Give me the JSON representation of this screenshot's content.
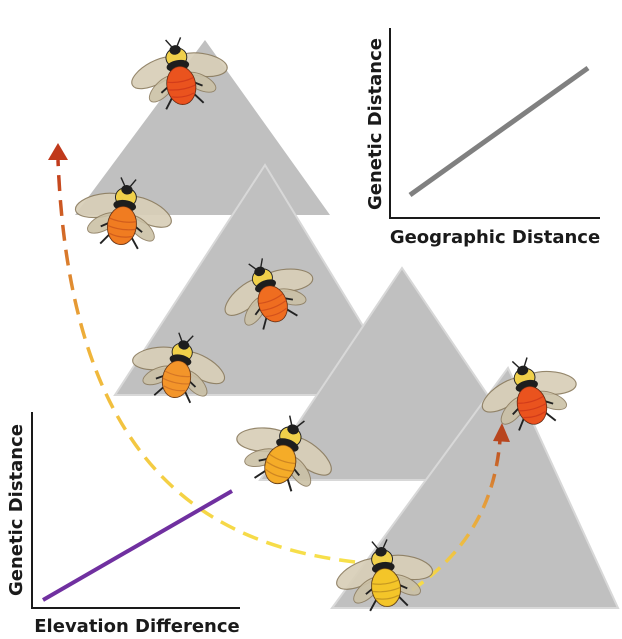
{
  "colors": {
    "mountain": "#c0c0c0",
    "mountain_edge": "#d6d6d6",
    "inset_geo_line": "#808080",
    "inset_elev_line": "#7030a0",
    "path_start": "#f7e04a",
    "path_end": "#c0391b",
    "axis": "#1a1a1a",
    "bee_low_elevation": "#f4c02a",
    "bee_mid_elevation": "#f28a2a",
    "bee_high_elevation": "#e8401c"
  },
  "insets": {
    "geographic": {
      "ylabel": "Genetic Distance",
      "xlabel": "Geographic Distance"
    },
    "elevation": {
      "ylabel": "Genetic Distance",
      "xlabel": "Elevation Difference"
    }
  },
  "mountains": [
    "mountain-top-left",
    "mountain-middle",
    "mountain-lower-right",
    "mountain-bottom-right"
  ],
  "bees": [
    {
      "name": "bee-peak-top",
      "band": "high",
      "icon": "bumblebee-icon"
    },
    {
      "name": "bee-top-left-slope",
      "band": "mid-high",
      "icon": "bumblebee-icon"
    },
    {
      "name": "bee-middle-peak",
      "band": "high-mid",
      "icon": "bumblebee-icon"
    },
    {
      "name": "bee-middle-left",
      "band": "mid",
      "icon": "bumblebee-icon"
    },
    {
      "name": "bee-lower-middle",
      "band": "low-mid",
      "icon": "bumblebee-icon"
    },
    {
      "name": "bee-right-peak",
      "band": "high",
      "icon": "bumblebee-icon"
    },
    {
      "name": "bee-valley-bottom",
      "band": "low",
      "icon": "bumblebee-icon"
    }
  ],
  "arrows": [
    "dispersal-arrow-uphill-left",
    "dispersal-arrow-uphill-right"
  ]
}
